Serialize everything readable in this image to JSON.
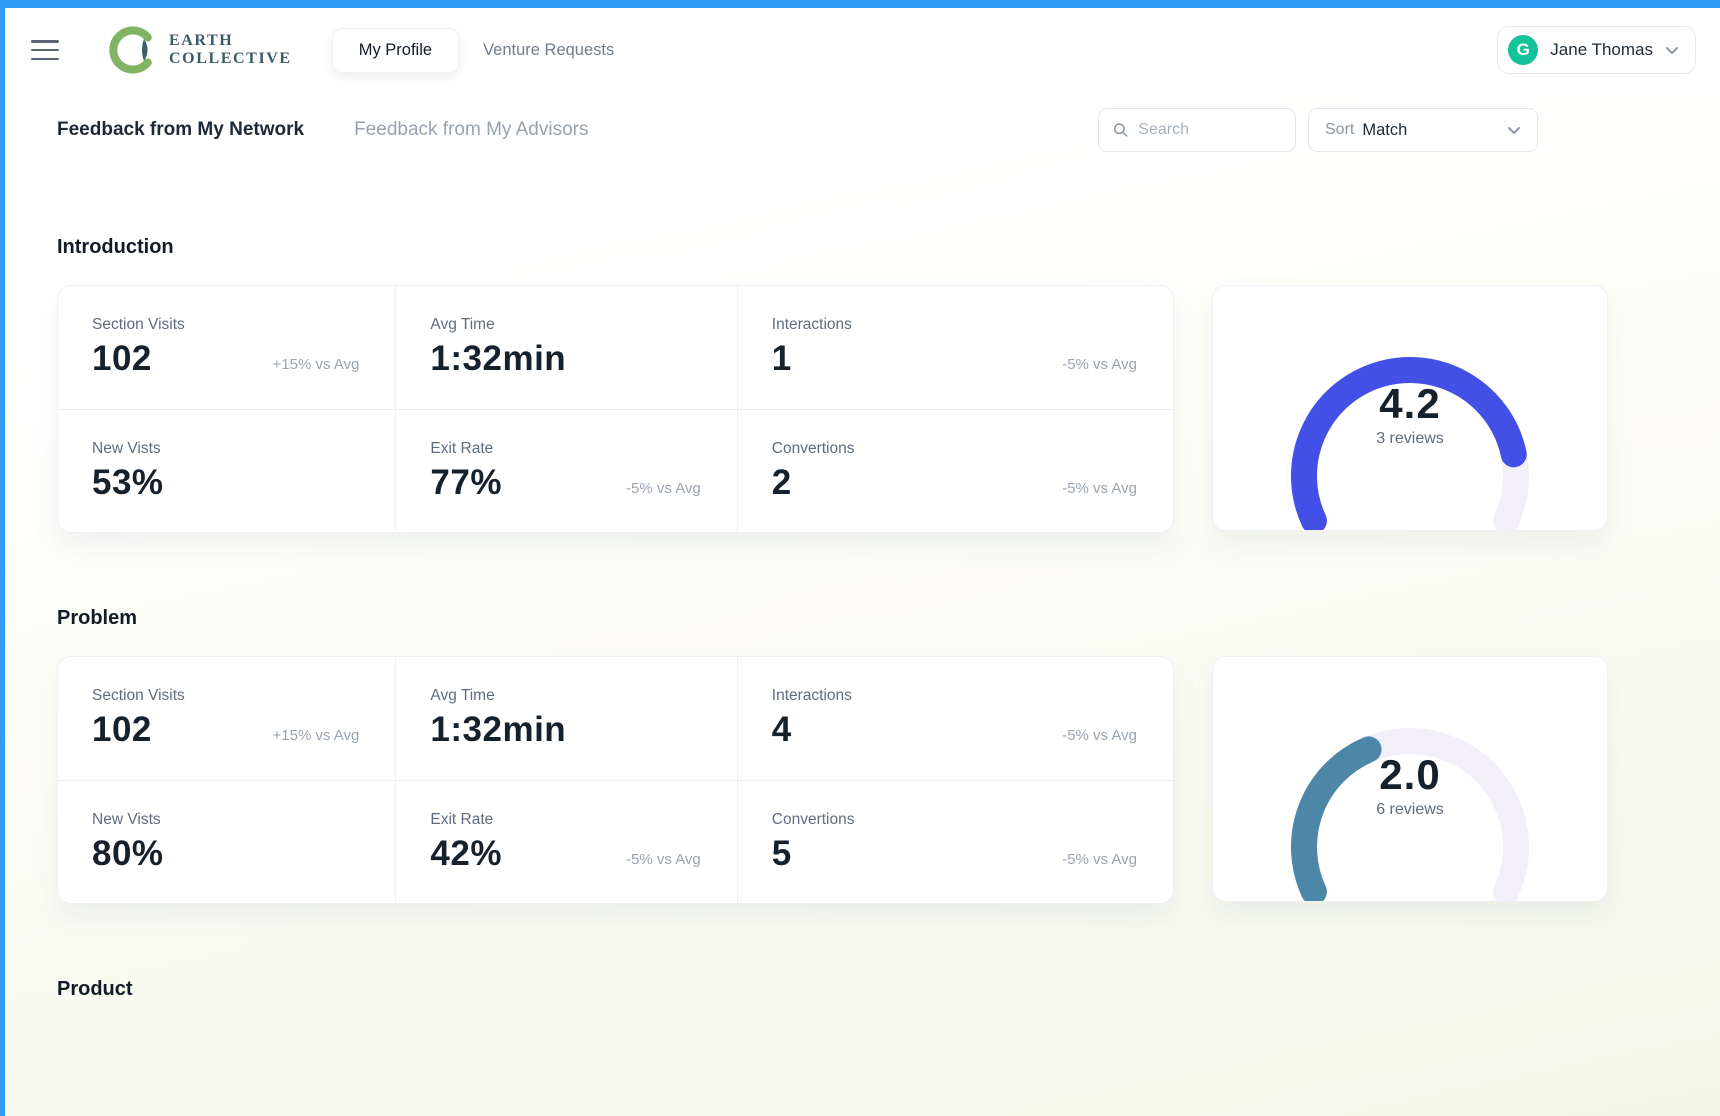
{
  "frame": {
    "accent_color": "#2f9bf4"
  },
  "navbar": {
    "logo": {
      "line1": "EARTH",
      "line2": "COLLECTIVE",
      "ring_color": "#82b465",
      "crescent_color": "#3a5f6e"
    },
    "profile_link": "My Profile",
    "ventures_link": "Venture Requests",
    "user": {
      "name": "Jane Thomas",
      "avatar_letter": "G",
      "avatar_color": "#14c39a"
    }
  },
  "tabs": {
    "network": "Feedback from My Network",
    "advisors": "Feedback from My Advisors"
  },
  "search": {
    "placeholder": "Search"
  },
  "sort": {
    "label": "Sort",
    "value": "Match"
  },
  "sections": [
    {
      "heading": "Introduction",
      "metrics": [
        {
          "label": "Section Visits",
          "value": "102",
          "delta": "+15% vs Avg"
        },
        {
          "label": "Avg Time",
          "value": "1:32min",
          "delta": ""
        },
        {
          "label": "Interactions",
          "value": "1",
          "delta": "-5% vs Avg"
        },
        {
          "label": "New Vists",
          "value": "53%",
          "delta": ""
        },
        {
          "label": "Exit Rate",
          "value": "77%",
          "delta": "-5% vs Avg"
        },
        {
          "label": "Convertions",
          "value": "2",
          "delta": "-5% vs Avg"
        }
      ],
      "gauge": {
        "rating": "4.2",
        "value": 4.2,
        "max": 5,
        "reviews": "3 reviews",
        "color": "#4350e6",
        "track_color": "#f2eff9"
      }
    },
    {
      "heading": "Problem",
      "metrics": [
        {
          "label": "Section Visits",
          "value": "102",
          "delta": "+15% vs Avg"
        },
        {
          "label": "Avg Time",
          "value": "1:32min",
          "delta": ""
        },
        {
          "label": "Interactions",
          "value": "4",
          "delta": "-5% vs Avg"
        },
        {
          "label": "New Vists",
          "value": "80%",
          "delta": ""
        },
        {
          "label": "Exit Rate",
          "value": "42%",
          "delta": "-5% vs Avg"
        },
        {
          "label": "Convertions",
          "value": "5",
          "delta": "-5% vs Avg"
        }
      ],
      "gauge": {
        "rating": "2.0",
        "value": 2.0,
        "max": 5,
        "reviews": "6 reviews",
        "color": "#4d87a8",
        "track_color": "#f2eff9"
      }
    },
    {
      "heading": "Product",
      "metrics": [],
      "gauge": null
    }
  ]
}
